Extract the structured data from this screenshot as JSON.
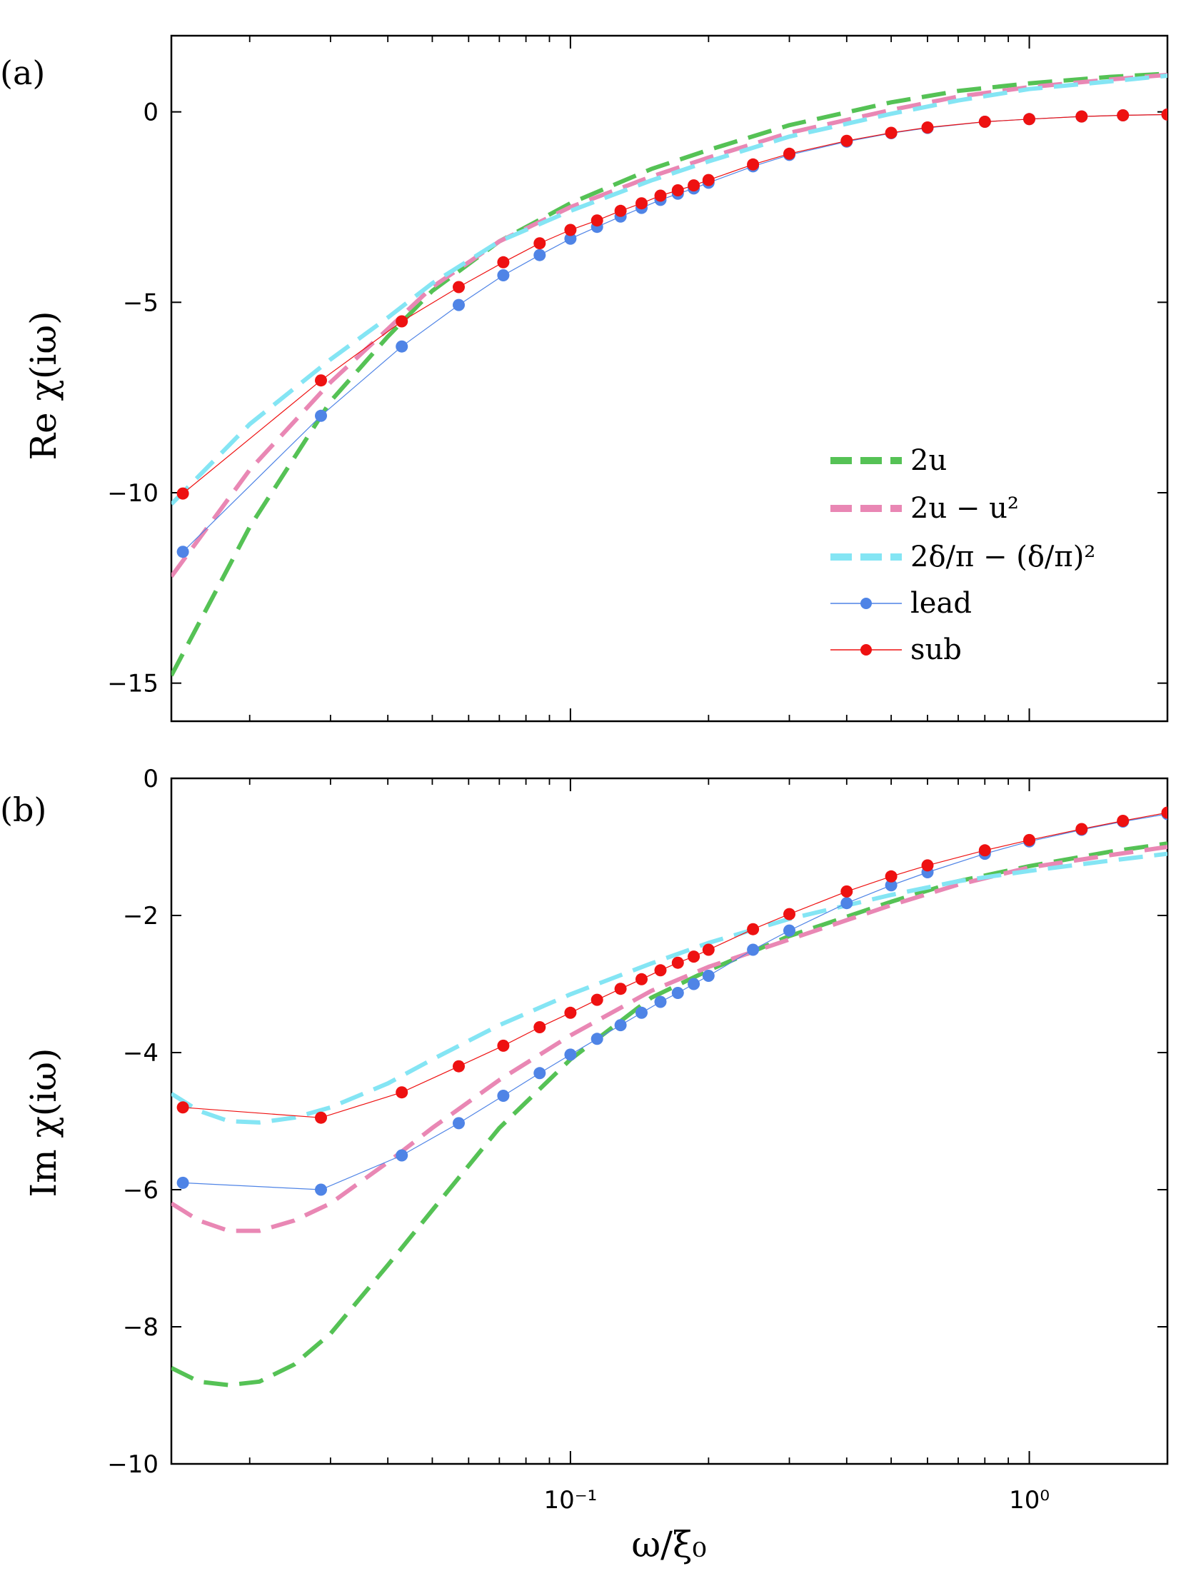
{
  "figure": {
    "xlabel": "ω/ξ₀",
    "xticks": [
      {
        "label": "10⁻¹",
        "value": 0.1
      },
      {
        "label": "10⁰",
        "value": 1
      }
    ],
    "colors": {
      "two_u": "#55c255",
      "two_u_minus_u2": "#e987b4",
      "delta": "#84e5f4",
      "lead": "#4f84e6",
      "sub": "#ee1111"
    }
  },
  "chart_data": [
    {
      "type": "line",
      "panel_label": "(a)",
      "xscale": "log",
      "xlim": [
        0.0135,
        2.0
      ],
      "ylim": [
        -16,
        2
      ],
      "ylabel": "Re χ(iω)",
      "yticks": [
        {
          "label": "0",
          "value": 0
        },
        {
          "label": "−5",
          "value": -5
        },
        {
          "label": "−10",
          "value": -10
        },
        {
          "label": "−15",
          "value": -15
        }
      ],
      "legend": {
        "position": "right",
        "entries": [
          {
            "key": "two_u",
            "label": "2u"
          },
          {
            "key": "two_u_minus_u2",
            "label": "2u − u²"
          },
          {
            "key": "delta",
            "label": "2δ/π − (δ/π)²"
          },
          {
            "key": "lead",
            "label": "lead"
          },
          {
            "key": "sub",
            "label": "sub"
          }
        ]
      },
      "series": [
        {
          "name": "2u",
          "key": "two_u",
          "style": "dashed",
          "x": [
            0.0135,
            0.02,
            0.03,
            0.04,
            0.05,
            0.07,
            0.1,
            0.15,
            0.2,
            0.3,
            0.5,
            0.7,
            1.0,
            1.5,
            2.0
          ],
          "y": [
            -14.8,
            -10.9,
            -7.6,
            -5.9,
            -4.7,
            -3.4,
            -2.4,
            -1.5,
            -1.0,
            -0.35,
            0.25,
            0.55,
            0.75,
            0.92,
            1.0
          ]
        },
        {
          "name": "2u − u²",
          "key": "two_u_minus_u2",
          "style": "dashed",
          "x": [
            0.0135,
            0.02,
            0.03,
            0.04,
            0.05,
            0.07,
            0.1,
            0.15,
            0.2,
            0.3,
            0.5,
            0.7,
            1.0,
            1.5,
            2.0
          ],
          "y": [
            -12.2,
            -9.4,
            -7.1,
            -5.7,
            -4.6,
            -3.4,
            -2.5,
            -1.7,
            -1.2,
            -0.55,
            0.05,
            0.4,
            0.65,
            0.85,
            0.97
          ]
        },
        {
          "name": "2δ/π − (δ/π)²",
          "key": "delta",
          "style": "dashed",
          "x": [
            0.0135,
            0.02,
            0.03,
            0.04,
            0.05,
            0.07,
            0.1,
            0.15,
            0.2,
            0.3,
            0.5,
            0.7,
            1.0,
            1.5,
            2.0
          ],
          "y": [
            -10.3,
            -8.2,
            -6.5,
            -5.4,
            -4.5,
            -3.4,
            -2.6,
            -1.8,
            -1.3,
            -0.65,
            -0.05,
            0.3,
            0.6,
            0.8,
            0.95
          ]
        },
        {
          "name": "lead",
          "key": "lead",
          "style": "points",
          "x": [
            0.0143,
            0.0286,
            0.0429,
            0.0571,
            0.0714,
            0.0857,
            0.1,
            0.1143,
            0.1286,
            0.1429,
            0.1571,
            0.1714,
            0.1857,
            0.2,
            0.25,
            0.3,
            0.4,
            0.5,
            0.6,
            0.8,
            1.0,
            1.3,
            1.6,
            2.0
          ],
          "y": [
            -11.55,
            -7.98,
            -6.16,
            -5.07,
            -4.29,
            -3.76,
            -3.33,
            -3.02,
            -2.75,
            -2.52,
            -2.31,
            -2.15,
            -2.01,
            -1.86,
            -1.43,
            -1.13,
            -0.78,
            -0.56,
            -0.42,
            -0.26,
            -0.19,
            -0.12,
            -0.09,
            -0.07
          ]
        },
        {
          "name": "sub",
          "key": "sub",
          "style": "points",
          "x": [
            0.0143,
            0.0286,
            0.0429,
            0.0571,
            0.0714,
            0.0857,
            0.1,
            0.1143,
            0.1286,
            0.1429,
            0.1571,
            0.1714,
            0.1857,
            0.2,
            0.25,
            0.3,
            0.4,
            0.5,
            0.6,
            0.8,
            1.0,
            1.3,
            1.6,
            2.0
          ],
          "y": [
            -10.02,
            -7.05,
            -5.5,
            -4.6,
            -3.95,
            -3.45,
            -3.1,
            -2.85,
            -2.6,
            -2.4,
            -2.2,
            -2.06,
            -1.93,
            -1.79,
            -1.38,
            -1.1,
            -0.76,
            -0.55,
            -0.41,
            -0.26,
            -0.19,
            -0.12,
            -0.09,
            -0.07
          ]
        }
      ]
    },
    {
      "type": "line",
      "panel_label": "(b)",
      "xscale": "log",
      "xlim": [
        0.0135,
        2.0
      ],
      "ylim": [
        -10,
        0
      ],
      "ylabel": "Im χ(iω)",
      "yticks": [
        {
          "label": "0",
          "value": 0
        },
        {
          "label": "−2",
          "value": -2
        },
        {
          "label": "−4",
          "value": -4
        },
        {
          "label": "−6",
          "value": -6
        },
        {
          "label": "−8",
          "value": -8
        },
        {
          "label": "−10",
          "value": -10
        }
      ],
      "series": [
        {
          "name": "2u",
          "key": "two_u",
          "style": "dashed",
          "x": [
            0.0135,
            0.0155,
            0.018,
            0.021,
            0.025,
            0.03,
            0.04,
            0.05,
            0.07,
            0.1,
            0.15,
            0.2,
            0.3,
            0.5,
            0.7,
            1.0,
            1.5,
            2.0
          ],
          "y": [
            -8.6,
            -8.8,
            -8.85,
            -8.8,
            -8.55,
            -8.1,
            -7.1,
            -6.3,
            -5.1,
            -4.1,
            -3.2,
            -2.8,
            -2.3,
            -1.8,
            -1.5,
            -1.28,
            -1.07,
            -0.95
          ]
        },
        {
          "name": "2u − u²",
          "key": "two_u_minus_u2",
          "style": "dashed",
          "x": [
            0.0135,
            0.0155,
            0.018,
            0.021,
            0.025,
            0.03,
            0.04,
            0.05,
            0.07,
            0.1,
            0.15,
            0.2,
            0.3,
            0.5,
            0.7,
            1.0,
            1.5,
            2.0
          ],
          "y": [
            -6.2,
            -6.45,
            -6.6,
            -6.6,
            -6.45,
            -6.2,
            -5.6,
            -5.1,
            -4.4,
            -3.75,
            -3.1,
            -2.75,
            -2.35,
            -1.85,
            -1.55,
            -1.3,
            -1.12,
            -1.0
          ]
        },
        {
          "name": "2δ/π − (δ/π)²",
          "key": "delta",
          "style": "dashed",
          "x": [
            0.0135,
            0.0155,
            0.018,
            0.021,
            0.025,
            0.03,
            0.04,
            0.05,
            0.07,
            0.1,
            0.15,
            0.2,
            0.3,
            0.5,
            0.7,
            1.0,
            1.5,
            2.0
          ],
          "y": [
            -4.6,
            -4.85,
            -5.0,
            -5.02,
            -4.95,
            -4.8,
            -4.45,
            -4.1,
            -3.6,
            -3.15,
            -2.7,
            -2.4,
            -2.05,
            -1.7,
            -1.5,
            -1.35,
            -1.2,
            -1.1
          ]
        },
        {
          "name": "lead",
          "key": "lead",
          "style": "points",
          "x": [
            0.0143,
            0.0286,
            0.0429,
            0.0571,
            0.0714,
            0.0857,
            0.1,
            0.1143,
            0.1286,
            0.1429,
            0.1571,
            0.1714,
            0.1857,
            0.2,
            0.25,
            0.3,
            0.4,
            0.5,
            0.6,
            0.8,
            1.0,
            1.3,
            1.6,
            2.0
          ],
          "y": [
            -5.9,
            -6.0,
            -5.5,
            -5.03,
            -4.63,
            -4.3,
            -4.03,
            -3.8,
            -3.6,
            -3.42,
            -3.26,
            -3.13,
            -3.0,
            -2.88,
            -2.5,
            -2.22,
            -1.82,
            -1.56,
            -1.37,
            -1.1,
            -0.92,
            -0.75,
            -0.63,
            -0.52
          ]
        },
        {
          "name": "sub",
          "key": "sub",
          "style": "points",
          "x": [
            0.0143,
            0.0286,
            0.0429,
            0.0571,
            0.0714,
            0.0857,
            0.1,
            0.1143,
            0.1286,
            0.1429,
            0.1571,
            0.1714,
            0.1857,
            0.2,
            0.25,
            0.3,
            0.4,
            0.5,
            0.6,
            0.8,
            1.0,
            1.3,
            1.6,
            2.0
          ],
          "y": [
            -4.8,
            -4.95,
            -4.58,
            -4.2,
            -3.9,
            -3.63,
            -3.42,
            -3.23,
            -3.07,
            -2.93,
            -2.8,
            -2.69,
            -2.6,
            -2.5,
            -2.2,
            -1.98,
            -1.65,
            -1.43,
            -1.27,
            -1.05,
            -0.9,
            -0.74,
            -0.62,
            -0.5
          ]
        }
      ]
    }
  ]
}
